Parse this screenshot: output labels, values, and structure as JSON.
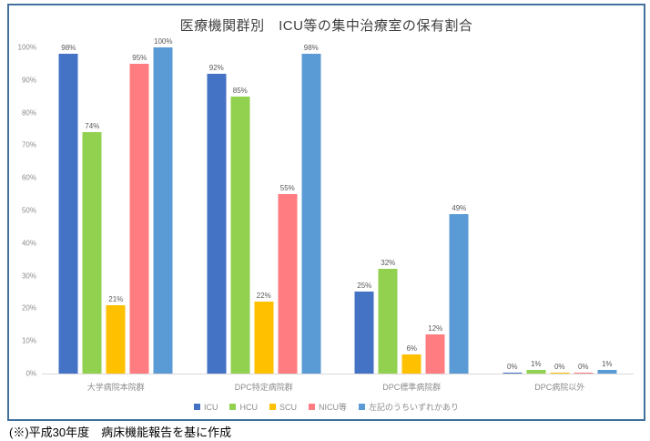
{
  "footnote": "(※)平成30年度　病床機能報告を基に作成",
  "frame": {
    "border_color": "#41719C"
  },
  "chart_data": {
    "type": "bar",
    "title": "医療機関群別　ICU等の集中治療室の保有割合",
    "categories": [
      "大学病院本院群",
      "DPC特定病院群",
      "DPC標準病院群",
      "DPC病院以外"
    ],
    "series": [
      {
        "name": "ICU",
        "color": "#4472C4",
        "values": [
          98,
          92,
          25,
          0
        ]
      },
      {
        "name": "HCU",
        "color": "#92D050",
        "values": [
          74,
          85,
          32,
          1
        ]
      },
      {
        "name": "SCU",
        "color": "#FFC000",
        "values": [
          21,
          22,
          6,
          0
        ]
      },
      {
        "name": "NICU等",
        "color": "#FF7C80",
        "values": [
          95,
          55,
          12,
          0
        ]
      },
      {
        "name": "左記のうちいずれかあり",
        "color": "#5B9BD5",
        "values": [
          100,
          98,
          49,
          1
        ]
      }
    ],
    "yticks": [
      "100%",
      "90%",
      "80%",
      "70%",
      "60%",
      "50%",
      "40%",
      "30%",
      "20%",
      "10%",
      "0%"
    ],
    "ylim": [
      0,
      100
    ],
    "value_suffix": "%",
    "grid": false,
    "legend_position": "bottom",
    "axis_color": "#d9d9d9",
    "value_label_color": "#595959",
    "tick_label_color": "#8c8c8c",
    "title_color": "#404040"
  }
}
